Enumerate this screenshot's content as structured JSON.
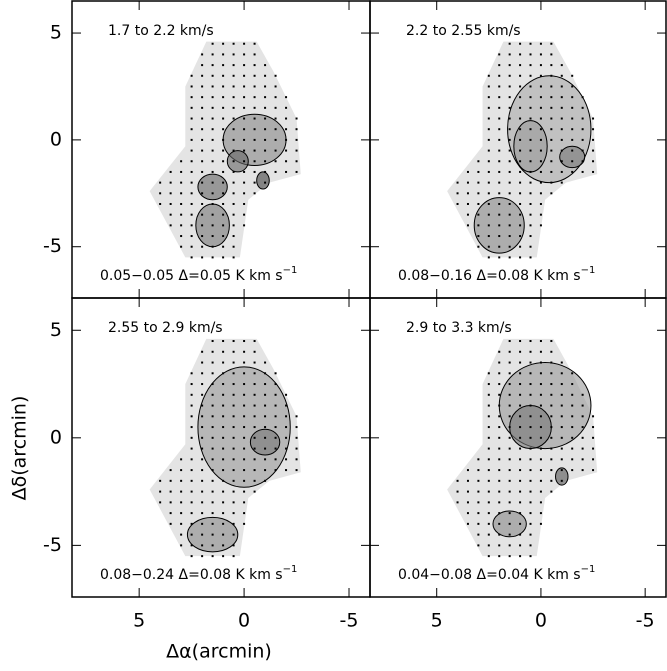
{
  "figure": {
    "xlabel": "Δα(arcmin)",
    "ylabel": "Δδ(arcmin)"
  },
  "chart_data": [
    {
      "type": "map",
      "title": "1.7 to 2.2 km/s",
      "contours": "0.05−0.05 Δ=0.05 K km s",
      "contours_sup": "−1",
      "xlim": [
        8.2,
        -6
      ],
      "ylim": [
        -7.4,
        6.5
      ],
      "xticks": [
        5,
        0,
        -5
      ],
      "yticks": [
        5,
        0,
        -5
      ]
    },
    {
      "type": "map",
      "title": "2.2 to 2.55 km/s",
      "contours": "0.08−0.16 Δ=0.08 K km s",
      "contours_sup": "−1",
      "xlim": [
        8.2,
        -6
      ],
      "ylim": [
        -7.4,
        6.5
      ],
      "xticks": [
        5,
        0,
        -5
      ],
      "yticks": [
        5,
        0,
        -5
      ]
    },
    {
      "type": "map",
      "title": "2.55 to 2.9 km/s",
      "contours": "0.08−0.24 Δ=0.08 K km s",
      "contours_sup": "−1",
      "xlim": [
        8.2,
        -6
      ],
      "ylim": [
        -7.4,
        6.5
      ],
      "xticks": [
        5,
        0,
        -5
      ],
      "yticks": [
        5,
        0,
        -5
      ]
    },
    {
      "type": "map",
      "title": "2.9 to 3.3 km/s",
      "contours": "0.04−0.08 Δ=0.04 K km s",
      "contours_sup": "−1",
      "xlim": [
        8.2,
        -6
      ],
      "ylim": [
        -7.4,
        6.5
      ],
      "xticks": [
        5,
        0,
        -5
      ],
      "yticks": [
        5,
        0,
        -5
      ]
    }
  ]
}
